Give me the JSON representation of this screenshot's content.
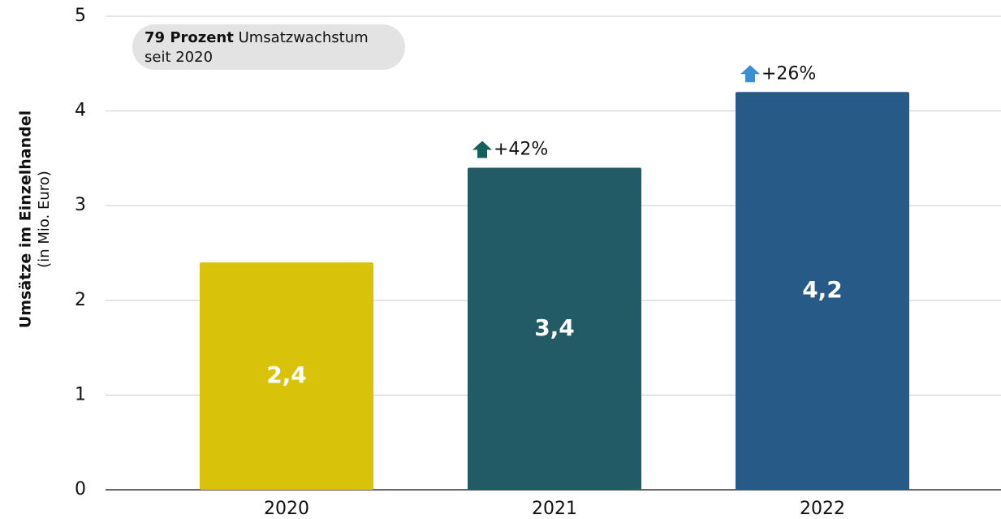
{
  "chart_data": {
    "type": "bar",
    "y_label": "Umsätze im Einzelhandel",
    "y_label_unit": "(in Mio. Euro)",
    "note": {
      "bold": "79 Prozent",
      "text": " Umsatzwachstum",
      "line2": "seit 2020"
    },
    "categories": [
      "2020",
      "2021",
      "2022"
    ],
    "values": [
      2.4,
      3.4,
      4.2
    ],
    "value_labels": [
      "2,4",
      "3,4",
      "4,2"
    ],
    "colors": [
      "#d9c20a",
      "#225b66",
      "#275a87"
    ],
    "growth_labels": [
      null,
      "+42%",
      "+26%"
    ],
    "growth_colors": [
      null,
      "#13605f",
      "#3a8fd6"
    ],
    "ylim": [
      0,
      5
    ],
    "yticks": [
      0,
      1,
      2,
      3,
      4,
      5
    ],
    "grid": true
  }
}
